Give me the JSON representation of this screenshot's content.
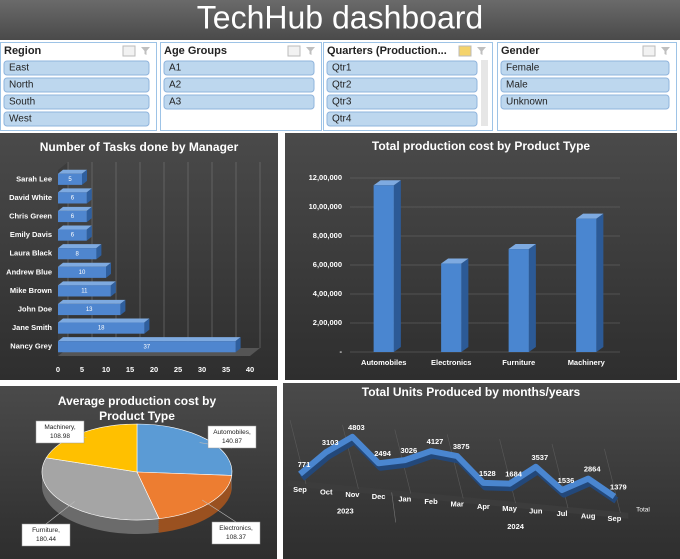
{
  "header": {
    "title": "TechHub dashboard"
  },
  "slicers": [
    {
      "title": "Region",
      "items": [
        "East",
        "North",
        "South",
        "West"
      ]
    },
    {
      "title": "Age Groups",
      "items": [
        "A1",
        "A2",
        "A3"
      ]
    },
    {
      "title": "Quarters (Production...",
      "items": [
        "Qtr1",
        "Qtr2",
        "Qtr3",
        "Qtr4"
      ]
    },
    {
      "title": "Gender",
      "items": [
        "Female",
        "Male",
        "Unknown"
      ]
    }
  ],
  "chart_data": [
    {
      "type": "bar",
      "orientation": "horizontal",
      "title": "Number of Tasks done by Manager",
      "categories": [
        "Sarah Lee",
        "David White",
        "Chris Green",
        "Emily Davis",
        "Laura Black",
        "Andrew Blue",
        "Mike Brown",
        "John Doe",
        "Jane Smith",
        "Nancy Grey"
      ],
      "values": [
        5,
        6,
        6,
        6,
        8,
        10,
        11,
        13,
        18,
        37
      ],
      "color": "#4f86cf",
      "xlim": [
        0,
        40
      ],
      "xticks": [
        0,
        5,
        10,
        15,
        20,
        25,
        30,
        35,
        40
      ],
      "grid": true
    },
    {
      "type": "bar",
      "orientation": "vertical",
      "title": "Total production cost by Product Type",
      "categories": [
        "Automobiles",
        "Electronics",
        "Furniture",
        "Machinery"
      ],
      "values": [
        1150000,
        610000,
        710000,
        920000
      ],
      "color": "#4a86d0",
      "ylim": [
        0,
        1200000
      ],
      "yticks": [
        {
          "value": 0,
          "label": "-"
        },
        {
          "value": 200000,
          "label": "2,00,000"
        },
        {
          "value": 400000,
          "label": "4,00,000"
        },
        {
          "value": 600000,
          "label": "6,00,000"
        },
        {
          "value": 800000,
          "label": "8,00,000"
        },
        {
          "value": 1000000,
          "label": "10,00,000"
        },
        {
          "value": 1200000,
          "label": "12,00,000"
        }
      ],
      "grid": true
    },
    {
      "type": "pie",
      "title": "Average production cost by Product Type",
      "categories": [
        "Automobiles",
        "Electronics",
        "Furniture",
        "Machinery"
      ],
      "values": [
        140.87,
        108.37,
        180.44,
        108.98
      ],
      "separator": ",",
      "colors": [
        "#5b9bd5",
        "#ed7d31",
        "#a5a5a5",
        "#ffc000"
      ]
    },
    {
      "type": "line",
      "title": "Total Units Produced by months/years",
      "categories": [
        "Sep",
        "Oct",
        "Nov",
        "Dec",
        "Jan",
        "Feb",
        "Mar",
        "Apr",
        "May",
        "Jun",
        "Jul",
        "Aug",
        "Sep"
      ],
      "years": [
        "2023",
        "2023",
        "2023",
        "2023",
        "2024",
        "2024",
        "2024",
        "2024",
        "2024",
        "2024",
        "2024",
        "2024",
        "2024"
      ],
      "series": [
        {
          "name": "Total",
          "color": "#4a86d0",
          "values": [
            771,
            3103,
            4803,
            2494,
            3026,
            4127,
            3875,
            1528,
            1684,
            3537,
            1536,
            2864,
            1379
          ]
        }
      ]
    }
  ]
}
